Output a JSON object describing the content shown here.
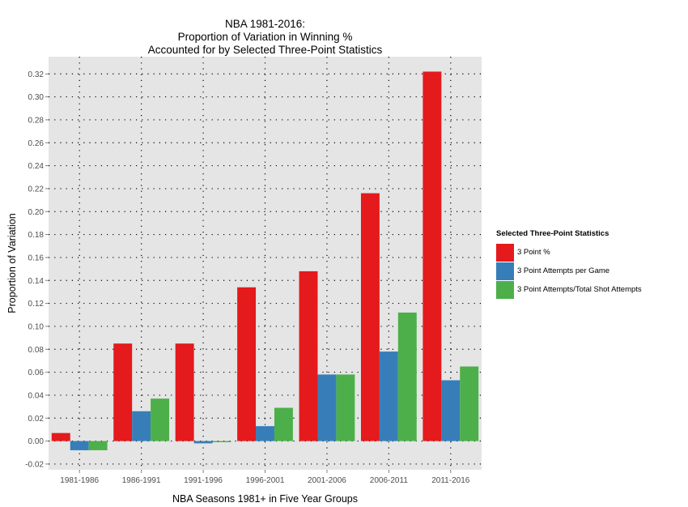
{
  "chart_data": {
    "type": "bar",
    "title": [
      "NBA 1981-2016:",
      "Proportion of Variation in Winning %",
      "Accounted for by Selected Three-Point Statistics"
    ],
    "xlabel": "NBA Seasons 1981+ in Five Year Groups",
    "ylabel": "Proportion of Variation",
    "ylim": [
      -0.025,
      0.335
    ],
    "yticks": [
      -0.02,
      0.0,
      0.02,
      0.04,
      0.06,
      0.08,
      0.1,
      0.12,
      0.14,
      0.16,
      0.18,
      0.2,
      0.22,
      0.24,
      0.26,
      0.28,
      0.3,
      0.32
    ],
    "ytick_labels": [
      "-0.02",
      "0.00",
      "0.02",
      "0.04",
      "0.06",
      "0.08",
      "0.10",
      "0.12",
      "0.14",
      "0.16",
      "0.18",
      "0.20",
      "0.22",
      "0.24",
      "0.26",
      "0.28",
      "0.30",
      "0.32"
    ],
    "categories": [
      "1981-1986",
      "1986-1991",
      "1991-1996",
      "1996-2001",
      "2001-2006",
      "2006-2011",
      "2011-2016"
    ],
    "grid": "dotted",
    "legend_title": "Selected Three-Point Statistics",
    "legend_position": "right",
    "series": [
      {
        "name": "3 Point %",
        "color": "#e41a1c",
        "values": [
          0.007,
          0.085,
          0.085,
          0.134,
          0.148,
          0.216,
          0.322
        ]
      },
      {
        "name": "3 Point Attempts per Game",
        "color": "#377eb8",
        "values": [
          -0.008,
          0.026,
          -0.002,
          0.013,
          0.058,
          0.078,
          0.053
        ]
      },
      {
        "name": "3 Point Attempts/Total Shot Attempts",
        "color": "#4daf4a",
        "values": [
          -0.008,
          0.037,
          -0.001,
          0.029,
          0.058,
          0.112,
          0.065
        ]
      }
    ]
  }
}
